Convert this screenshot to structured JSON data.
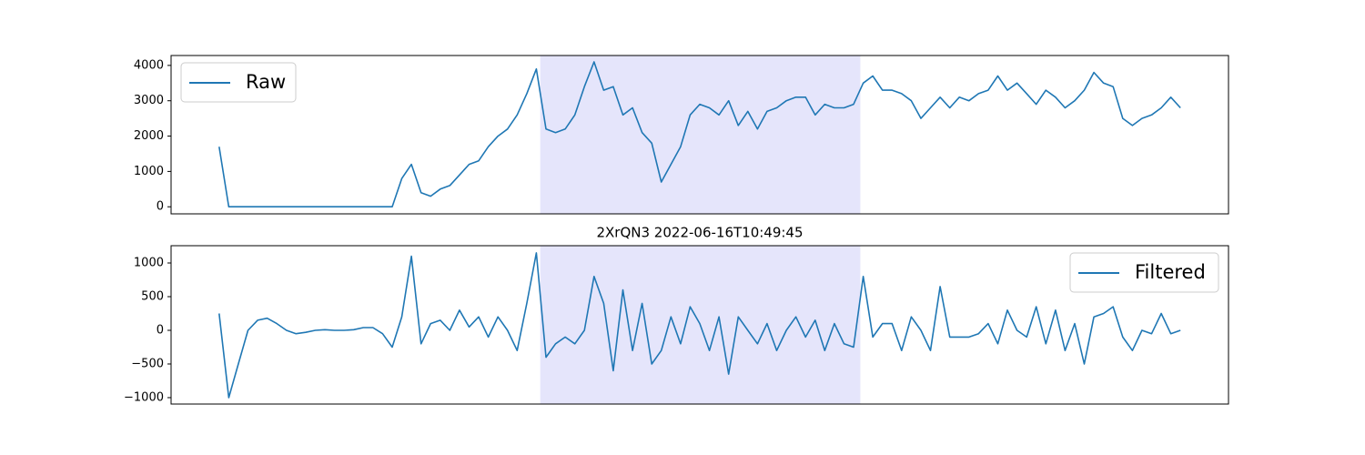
{
  "chart_data": [
    {
      "type": "line",
      "legend": "upper left",
      "xlim": [
        -5,
        105
      ],
      "span": [
        33.4,
        66.7
      ],
      "span_color": "#e5e5fb",
      "ylim": [
        -200,
        4280
      ],
      "yticks": [
        0,
        1000,
        2000,
        3000,
        4000
      ],
      "series": [
        {
          "name": "Raw",
          "color": "#1f77b4",
          "values": [
            1700,
            0,
            0,
            0,
            0,
            0,
            0,
            0,
            0,
            0,
            0,
            0,
            0,
            0,
            0,
            0,
            0,
            0,
            0,
            800,
            1200,
            400,
            300,
            500,
            600,
            900,
            1200,
            1300,
            1700,
            2000,
            2200,
            2600,
            3200,
            3900,
            2200,
            2100,
            2200,
            2600,
            3400,
            4100,
            3300,
            3400,
            2600,
            2800,
            2100,
            1800,
            700,
            1200,
            1700,
            2600,
            2900,
            2800,
            2600,
            3000,
            2300,
            2700,
            2200,
            2700,
            2800,
            3000,
            3100,
            3100,
            2600,
            2900,
            2800,
            2800,
            2900,
            3500,
            3700,
            3300,
            3300,
            3200,
            3000,
            2500,
            2800,
            3100,
            2800,
            3100,
            3000,
            3200,
            3300,
            3700,
            3300,
            3500,
            3200,
            2900,
            3300,
            3100,
            2800,
            3000,
            3300,
            3800,
            3500,
            3400,
            2500,
            2300,
            2500,
            2600,
            2800,
            3100,
            2800
          ]
        }
      ]
    },
    {
      "type": "line",
      "title": "2XrQN3 2022-06-16T10:49:45",
      "legend": "upper right",
      "xlim": [
        -5,
        105
      ],
      "span": [
        33.4,
        66.7
      ],
      "span_color": "#e5e5fb",
      "ylim": [
        -1095,
        1257
      ],
      "yticks": [
        {
          "value": -1000,
          "label": "−1000"
        },
        {
          "value": -500,
          "label": "−500"
        },
        0,
        500,
        1000
      ],
      "series": [
        {
          "name": "Filtered",
          "color": "#1f77b4",
          "values": [
            250,
            -1000,
            -500,
            0,
            150,
            180,
            100,
            0,
            -50,
            -30,
            0,
            10,
            0,
            0,
            10,
            40,
            40,
            -50,
            -250,
            200,
            1100,
            -200,
            100,
            150,
            0,
            300,
            50,
            200,
            -100,
            200,
            0,
            -300,
            400,
            1150,
            -400,
            -200,
            -100,
            -200,
            0,
            800,
            400,
            -600,
            600,
            -300,
            400,
            -500,
            -300,
            200,
            -200,
            350,
            100,
            -300,
            200,
            -650,
            200,
            0,
            -200,
            100,
            -300,
            0,
            200,
            -100,
            150,
            -300,
            100,
            -200,
            -250,
            800,
            -100,
            100,
            100,
            -300,
            200,
            0,
            -300,
            650,
            -100,
            -100,
            -100,
            -50,
            100,
            -200,
            300,
            0,
            -100,
            350,
            -200,
            300,
            -300,
            100,
            -500,
            200,
            250,
            350,
            -100,
            -300,
            0,
            -50,
            250,
            -50,
            0
          ]
        }
      ]
    }
  ]
}
